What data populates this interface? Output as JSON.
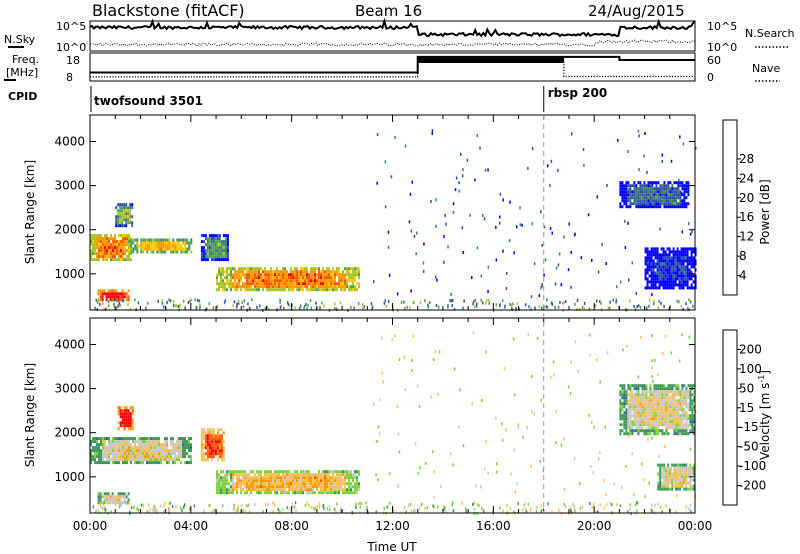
{
  "header": {
    "station": "Blackstone (fitACF)",
    "beam": "Beam 16",
    "date": "24/Aug/2015"
  },
  "top_panels": {
    "nsky_label": "N.Sky",
    "nsearch_label": "N.Search",
    "freq_label_1": "Freq.",
    "freq_label_2": "[MHz]",
    "nave_label": "Nave",
    "cpid_label": "CPID",
    "nsky_ticks": [
      "10^5",
      "10^0"
    ],
    "nsearch_ticks": [
      "10^5",
      "10^0"
    ],
    "freq_ticks": [
      "18",
      "8"
    ],
    "nave_ticks": [
      "60",
      "0"
    ],
    "cpid_segments": [
      {
        "name": "twofsound 3501",
        "start_hour": 0,
        "end_hour": 18
      },
      {
        "name": "rbsp 200",
        "start_hour": 18,
        "end_hour": 24
      }
    ],
    "freq_steps": [
      {
        "start_hour": 0,
        "end_hour": 13,
        "mhz": 10.5
      },
      {
        "start_hour": 13,
        "end_hour": 21,
        "mhz": 17.6
      },
      {
        "start_hour": 21,
        "end_hour": 24,
        "mhz": 16.2
      }
    ],
    "nave_steps": [
      {
        "start_hour": 0,
        "end_hour": 13,
        "value": 3
      },
      {
        "start_hour": 13,
        "end_hour": 18.8,
        "value": 50
      },
      {
        "start_hour": 18.8,
        "end_hour": 24,
        "value": 4
      }
    ]
  },
  "chart_data": [
    {
      "type": "heatmap",
      "panel": "power",
      "ylabel": "Slant Range [km]",
      "xlabel": "",
      "xlim": [
        0,
        24
      ],
      "ylim": [
        180,
        4600
      ],
      "yticks": [
        1000,
        2000,
        3000,
        4000
      ],
      "xticks": [
        "00:00",
        "04:00",
        "08:00",
        "12:00",
        "16:00",
        "20:00",
        "00:00"
      ],
      "colorbar": {
        "label": "Power [dB]",
        "ticks": [
          "4",
          "8",
          "12",
          "16",
          "20",
          "24",
          "28"
        ],
        "colors": [
          "#0000ff",
          "#2d4fa8",
          "#3a7d7a",
          "#55a050",
          "#a8c62a",
          "#ffc800",
          "#ff9a00",
          "#ff5a00",
          "#ff0000"
        ]
      },
      "regions": [
        {
          "t0": 0.0,
          "t1": 1.6,
          "r0": 1300,
          "r1": 1900,
          "level": 6
        },
        {
          "t0": 0.3,
          "t1": 1.5,
          "r0": 400,
          "r1": 650,
          "level": 8
        },
        {
          "t0": 1.6,
          "t1": 4.0,
          "r0": 1500,
          "r1": 1800,
          "level": 5
        },
        {
          "t0": 1.0,
          "t1": 1.7,
          "r0": 2100,
          "r1": 2600,
          "level": 3
        },
        {
          "t0": 4.4,
          "t1": 5.5,
          "r0": 1300,
          "r1": 1900,
          "level": 2
        },
        {
          "t0": 5.0,
          "t1": 10.7,
          "r0": 650,
          "r1": 1150,
          "level": 6
        },
        {
          "t0": 21.0,
          "t1": 23.7,
          "r0": 2500,
          "r1": 3100,
          "level": 1
        },
        {
          "t0": 22.0,
          "t1": 24.0,
          "r0": 700,
          "r1": 1600,
          "level": 0
        }
      ]
    },
    {
      "type": "heatmap",
      "panel": "velocity",
      "ylabel": "Slant Range [km]",
      "xlabel": "Time UT",
      "xlim": [
        0,
        24
      ],
      "ylim": [
        180,
        4600
      ],
      "yticks": [
        1000,
        2000,
        3000,
        4000
      ],
      "xticks": [
        "00:00",
        "04:00",
        "08:00",
        "12:00",
        "16:00",
        "20:00",
        "00:00"
      ],
      "colorbar": {
        "label": "Velocity [m s",
        "label_sup": "-1",
        "label_end": "]",
        "ticks": [
          "200",
          "100",
          "50",
          "15",
          "-15",
          "-50",
          "-100",
          "-200"
        ],
        "colors": [
          "#2a3fb5",
          "#2f6f8e",
          "#3e9a5a",
          "#7fd23b",
          "#c8c8c8",
          "#ffc04a",
          "#ff9a00",
          "#ff5a00",
          "#ff0000"
        ]
      },
      "regions": [
        {
          "t0": 0.0,
          "t1": 4.0,
          "r0": 1300,
          "r1": 1900,
          "level": 4
        },
        {
          "t0": 0.3,
          "t1": 1.5,
          "r0": 400,
          "r1": 650,
          "level": 4
        },
        {
          "t0": 1.1,
          "t1": 1.7,
          "r0": 2100,
          "r1": 2600,
          "level": 8
        },
        {
          "t0": 4.4,
          "t1": 5.3,
          "r0": 1400,
          "r1": 2100,
          "level": 7
        },
        {
          "t0": 5.0,
          "t1": 10.7,
          "r0": 650,
          "r1": 1150,
          "level": 5
        },
        {
          "t0": 21.0,
          "t1": 24.0,
          "r0": 2000,
          "r1": 3100,
          "level": 4
        },
        {
          "t0": 22.5,
          "t1": 24.0,
          "r0": 700,
          "r1": 1300,
          "level": 4
        }
      ]
    }
  ]
}
